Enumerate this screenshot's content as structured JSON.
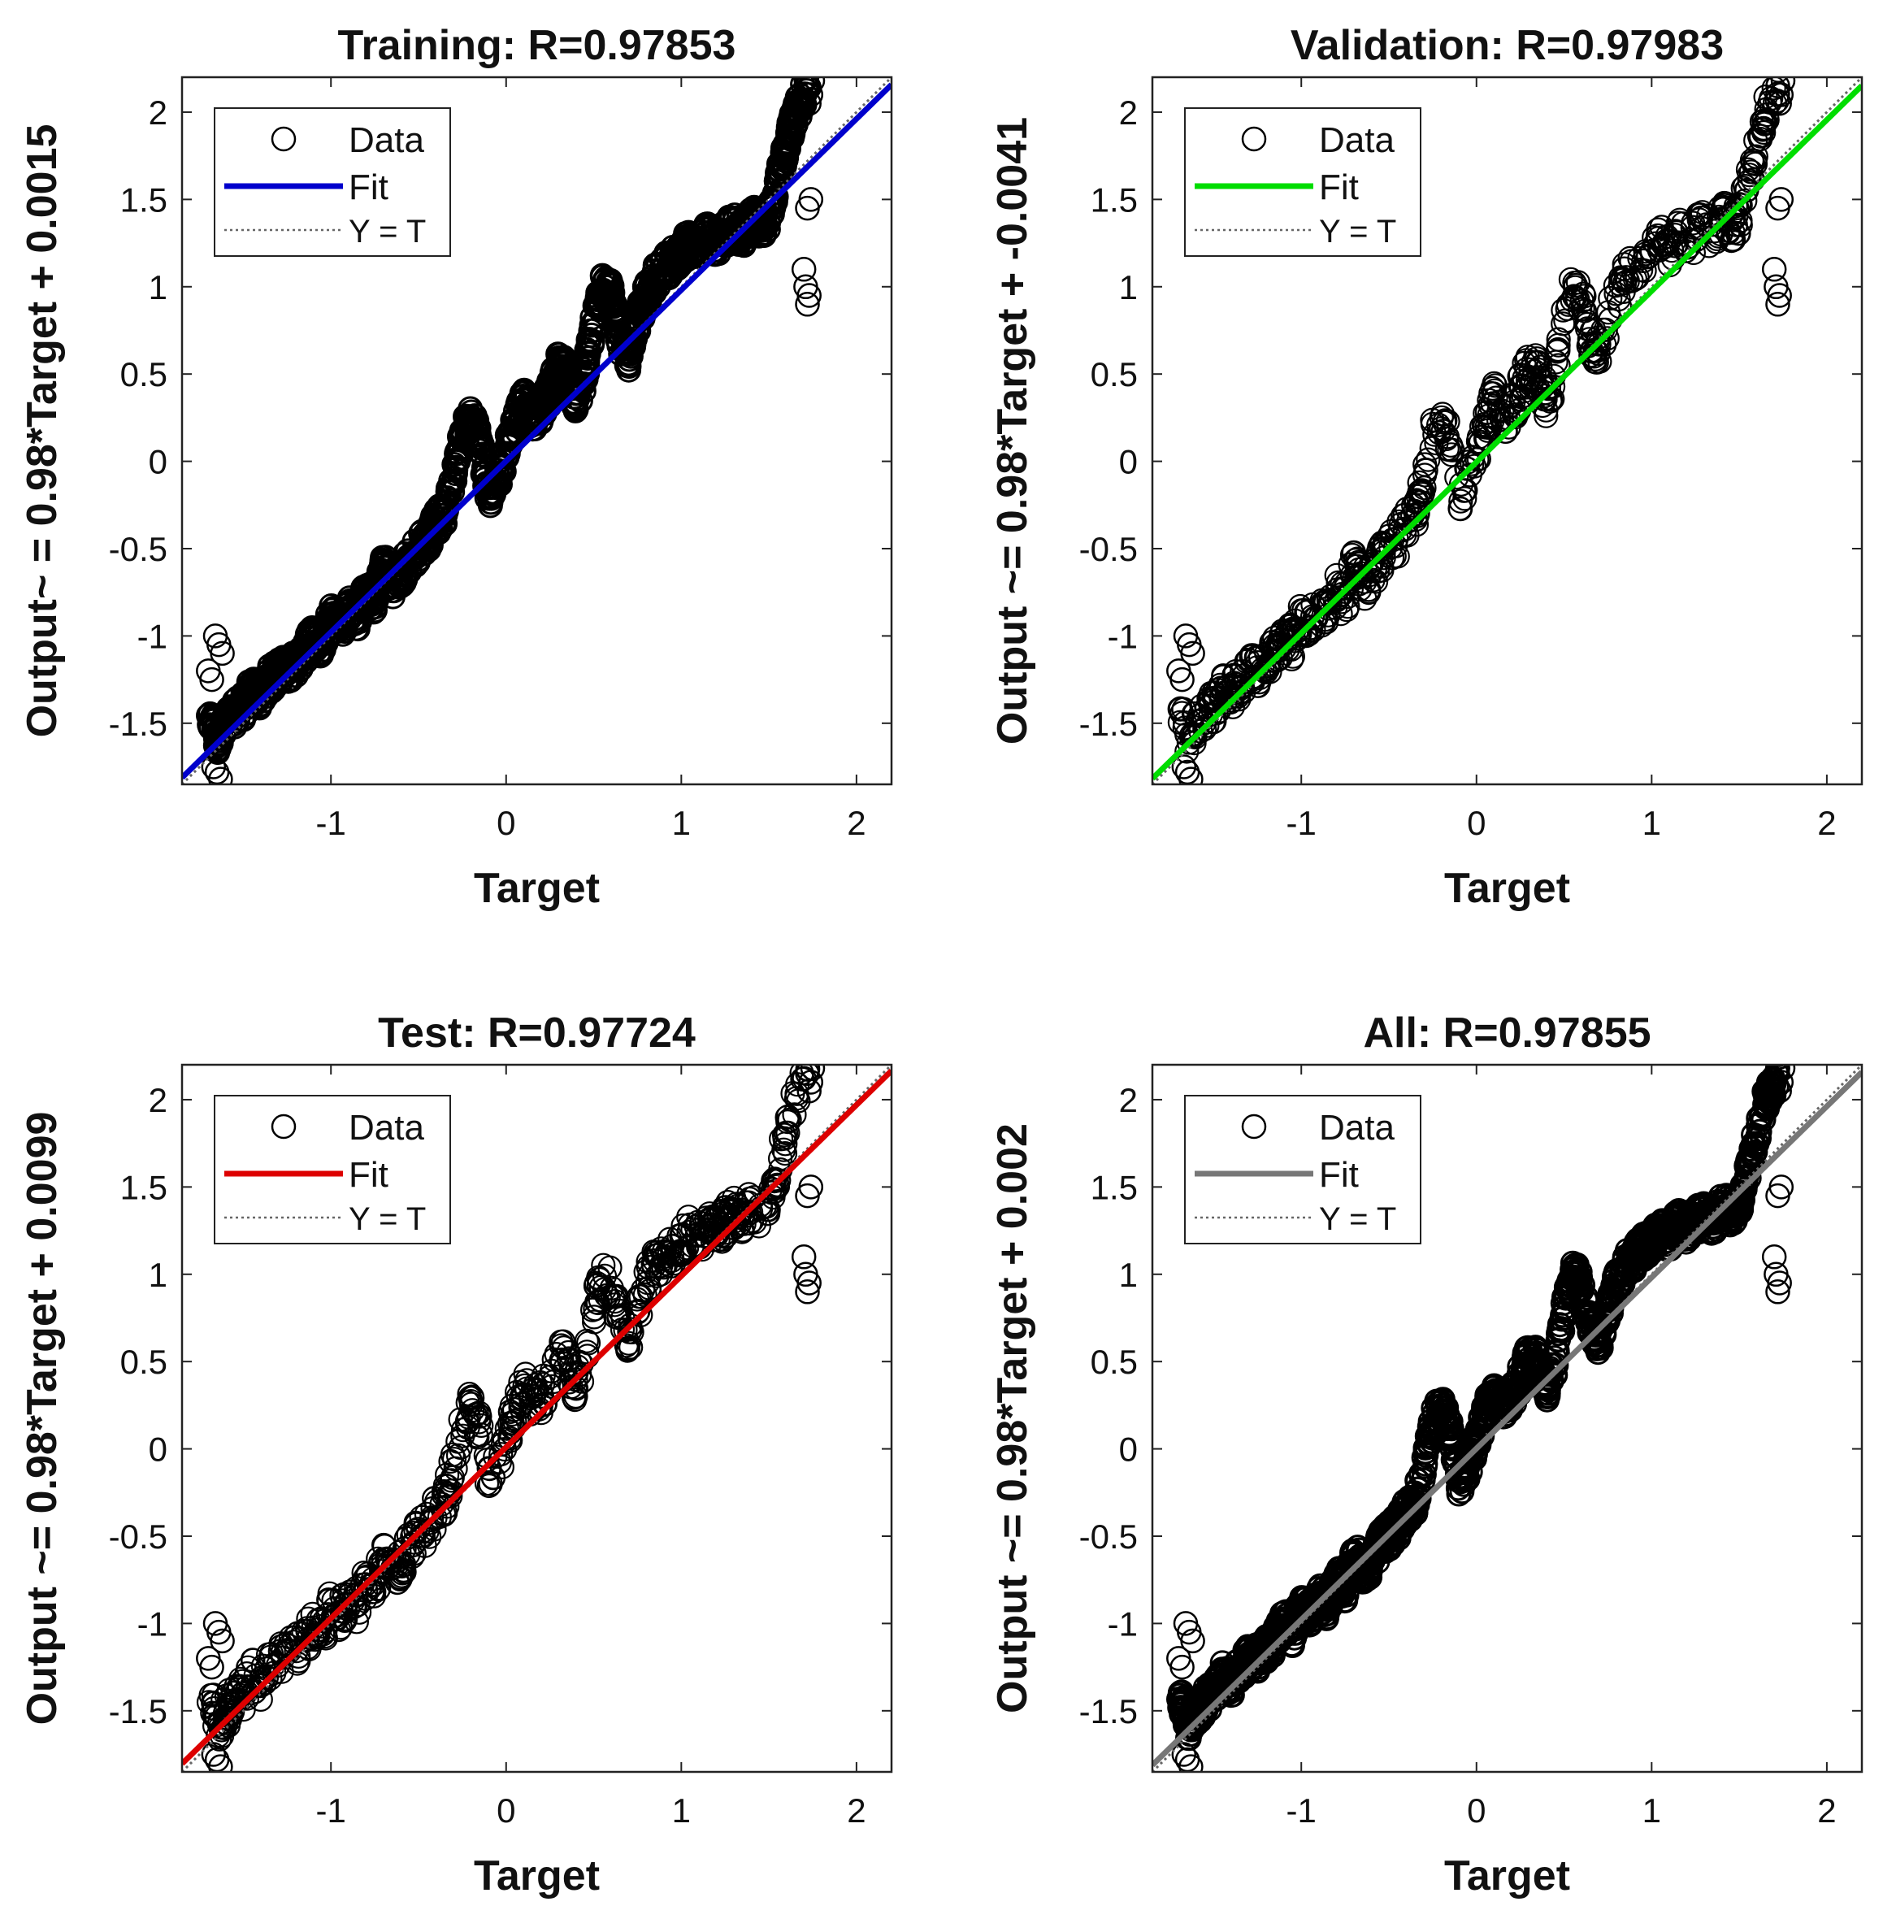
{
  "chart_data": [
    {
      "type": "scatter",
      "title": "Training: R=0.97853",
      "xlabel": "Target",
      "ylabel": "Output~ = 0.98*Target + 0.0015",
      "xlim": [
        -1.85,
        2.2
      ],
      "ylim": [
        -1.85,
        2.2
      ],
      "xticks": [
        -1,
        0,
        1,
        2
      ],
      "yticks": [
        -1.5,
        -1,
        -0.5,
        0,
        0.5,
        1,
        1.5,
        2
      ],
      "fit": {
        "slope": 0.98,
        "intercept": 0.0015,
        "color": "#0000cc"
      },
      "legend": {
        "data": "Data",
        "fit": "Fit",
        "identity": "Y = T",
        "placement": "top-left"
      },
      "density": "dense"
    },
    {
      "type": "scatter",
      "title": "Validation: R=0.97983",
      "xlabel": "Target",
      "ylabel": "Output ~= 0.98*Target + -0.0041",
      "xlim": [
        -1.85,
        2.2
      ],
      "ylim": [
        -1.85,
        2.2
      ],
      "xticks": [
        -1,
        0,
        1,
        2
      ],
      "yticks": [
        -1.5,
        -1,
        -0.5,
        0,
        0.5,
        1,
        1.5,
        2
      ],
      "fit": {
        "slope": 0.98,
        "intercept": -0.0041,
        "color": "#00dd00"
      },
      "legend": {
        "data": "Data",
        "fit": "Fit",
        "identity": "Y = T",
        "placement": "top-left"
      },
      "density": "sparse"
    },
    {
      "type": "scatter",
      "title": "Test: R=0.97724",
      "xlabel": "Target",
      "ylabel": "Output ~= 0.98*Target + 0.0099",
      "xlim": [
        -1.85,
        2.2
      ],
      "ylim": [
        -1.85,
        2.2
      ],
      "xticks": [
        -1,
        0,
        1,
        2
      ],
      "yticks": [
        -1.5,
        -1,
        -0.5,
        0,
        0.5,
        1,
        1.5,
        2
      ],
      "fit": {
        "slope": 0.98,
        "intercept": 0.0099,
        "color": "#dd0000"
      },
      "legend": {
        "data": "Data",
        "fit": "Fit",
        "identity": "Y = T",
        "placement": "top-left"
      },
      "density": "sparse"
    },
    {
      "type": "scatter",
      "title": "All: R=0.97855",
      "xlabel": "Target",
      "ylabel": "Output ~= 0.98*Target + 0.002",
      "xlim": [
        -1.85,
        2.2
      ],
      "ylim": [
        -1.85,
        2.2
      ],
      "xticks": [
        -1,
        0,
        1,
        2
      ],
      "yticks": [
        -1.5,
        -1,
        -0.5,
        0,
        0.5,
        1,
        1.5,
        2
      ],
      "fit": {
        "slope": 0.98,
        "intercept": 0.002,
        "color": "#777777"
      },
      "legend": {
        "data": "Data",
        "fit": "Fit",
        "identity": "Y = T",
        "placement": "top-left"
      },
      "density": "dense"
    }
  ],
  "data_path": {
    "target": [
      -1.68,
      -1.65,
      -1.6,
      -1.55,
      -1.5,
      -1.45,
      -1.4,
      -1.35,
      -1.3,
      -1.25,
      -1.2,
      -1.15,
      -1.1,
      -1.05,
      -1.0,
      -0.95,
      -0.9,
      -0.85,
      -0.8,
      -0.75,
      -0.7,
      -0.65,
      -0.6,
      -0.55,
      -0.5,
      -0.45,
      -0.4,
      -0.35,
      -0.3,
      -0.25,
      -0.2,
      -0.15,
      -0.1,
      -0.05,
      0.0,
      0.05,
      0.1,
      0.15,
      0.2,
      0.25,
      0.3,
      0.35,
      0.4,
      0.45,
      0.5,
      0.55,
      0.6,
      0.65,
      0.7,
      0.75,
      0.8,
      0.85,
      0.9,
      0.95,
      1.0,
      1.05,
      1.1,
      1.15,
      1.2,
      1.25,
      1.3,
      1.35,
      1.4,
      1.45,
      1.5,
      1.55,
      1.6,
      1.65,
      1.7,
      1.73
    ],
    "output": [
      -1.45,
      -1.6,
      -1.5,
      -1.45,
      -1.4,
      -1.3,
      -1.35,
      -1.25,
      -1.2,
      -1.2,
      -1.15,
      -1.1,
      -1.0,
      -1.05,
      -0.9,
      -0.95,
      -0.85,
      -0.9,
      -0.75,
      -0.8,
      -0.6,
      -0.7,
      -0.65,
      -0.55,
      -0.5,
      -0.45,
      -0.35,
      -0.3,
      -0.1,
      0.15,
      0.25,
      0.1,
      -0.2,
      -0.1,
      0.05,
      0.2,
      0.35,
      0.25,
      0.3,
      0.4,
      0.55,
      0.5,
      0.35,
      0.5,
      0.8,
      1.0,
      0.95,
      0.7,
      0.6,
      0.8,
      0.95,
      1.05,
      1.1,
      1.15,
      1.2,
      1.25,
      1.2,
      1.3,
      1.25,
      1.3,
      1.35,
      1.3,
      1.4,
      1.35,
      1.4,
      1.6,
      1.8,
      2.0,
      2.1,
      2.2
    ]
  }
}
